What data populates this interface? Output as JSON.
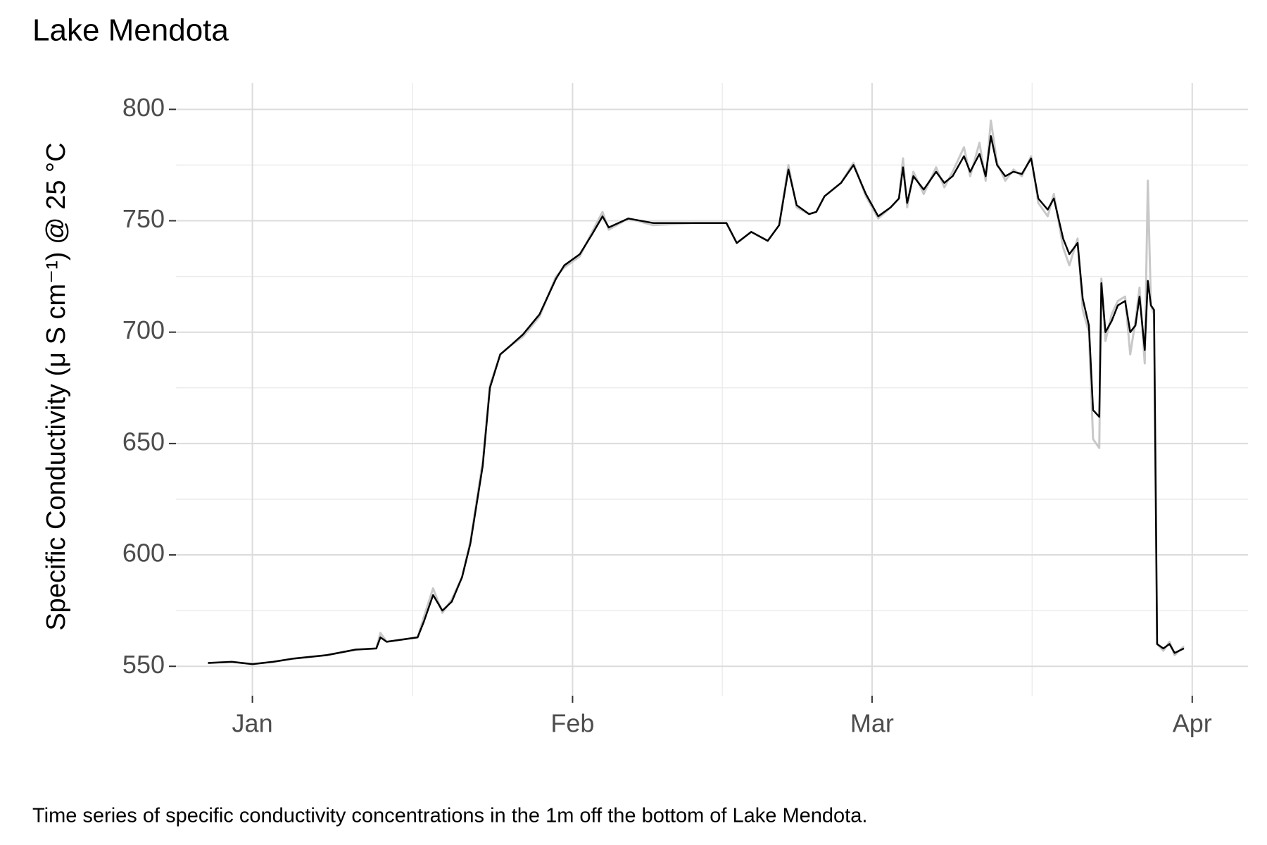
{
  "chart_data": {
    "type": "line",
    "title": "Lake Mendota",
    "y_label": "Specific Conductivity (μ S cm⁻¹) @ 25 °C",
    "caption": "Time series of specific conductivity concentrations in the 1m off the bottom of Lake Mendota.",
    "x": [
      -4.3,
      -2,
      0,
      2,
      4,
      7.2,
      10,
      12,
      12.4,
      13,
      16,
      16.6,
      17.5,
      18.4,
      19.3,
      20.3,
      21.1,
      22.3,
      23,
      24,
      25,
      26.2,
      27.8,
      29.4,
      30.2,
      31.7,
      32.9,
      33.9,
      34.5,
      36.4,
      38.8,
      42.8,
      45.9,
      46.9,
      48.3,
      49.9,
      51,
      51.9,
      52.7,
      53.9,
      54.6,
      55.4,
      57,
      58.2,
      59.4,
      60.6,
      61.8,
      62.6,
      63,
      63.4,
      64,
      65,
      66.2,
      67,
      67.8,
      68.9,
      69.5,
      70.4,
      71,
      71.5,
      72.1,
      72.9,
      73.7,
      74.5,
      75.4,
      76.1,
      77,
      77.6,
      78.5,
      79.1,
      79.9,
      80.4,
      81,
      81.4,
      82,
      82.2,
      82.6,
      83.2,
      83.8,
      84.5,
      85,
      85.5,
      85.9,
      86.4,
      86.7,
      87,
      87.3,
      87.6,
      88.2,
      88.8,
      89.3,
      90.2
    ],
    "series": [
      {
        "color": "#c8c8c8",
        "values": [
          551.5,
          552,
          551,
          552,
          553.5,
          555,
          557.5,
          558,
          565,
          561,
          563,
          572,
          585,
          574,
          580,
          590,
          606,
          642,
          676,
          690,
          694,
          698,
          707,
          725,
          729,
          734,
          745,
          754,
          746,
          751,
          748,
          749,
          749,
          740,
          745,
          741,
          748,
          775,
          756,
          753,
          754,
          761,
          767,
          776,
          761,
          751,
          756,
          760,
          778,
          756,
          772,
          762,
          774,
          765,
          772,
          783,
          770,
          785,
          768,
          795,
          776,
          768,
          773,
          770,
          779,
          758,
          752,
          762,
          738,
          730,
          742,
          710,
          700,
          652,
          648,
          724,
          696,
          708,
          714,
          716,
          690,
          705,
          720,
          686,
          768,
          712,
          708,
          560,
          557,
          561,
          555,
          559
        ]
      },
      {
        "color": "#000000",
        "values": [
          551.5,
          552,
          551,
          552,
          553.5,
          555,
          557.5,
          558,
          563,
          561,
          563,
          570,
          582,
          575,
          579,
          590,
          605,
          640,
          675,
          690,
          694,
          699,
          708,
          724,
          730,
          735,
          744,
          752,
          747,
          751,
          749,
          749,
          749,
          740,
          745,
          741,
          748,
          773,
          757,
          753,
          754,
          761,
          767,
          775,
          762,
          752,
          756,
          760,
          774,
          758,
          770,
          764,
          772,
          767,
          770,
          779,
          772,
          780,
          770,
          788,
          775,
          770,
          772,
          771,
          778,
          760,
          755,
          760,
          742,
          735,
          740,
          715,
          703,
          665,
          662,
          722,
          700,
          705,
          712,
          714,
          700,
          703,
          716,
          692,
          723,
          712,
          710,
          560,
          558,
          560,
          556,
          558
        ]
      }
    ],
    "xlim": [
      -7.4,
      96.4
    ],
    "xticks": [
      {
        "value": 0,
        "label": "Jan"
      },
      {
        "value": 31,
        "label": "Feb"
      },
      {
        "value": 60,
        "label": "Mar"
      },
      {
        "value": 91,
        "label": "Apr"
      }
    ],
    "ylim": [
      536.8,
      811.8
    ],
    "yticks": [
      550,
      600,
      650,
      700,
      750,
      800
    ],
    "grid": true
  }
}
